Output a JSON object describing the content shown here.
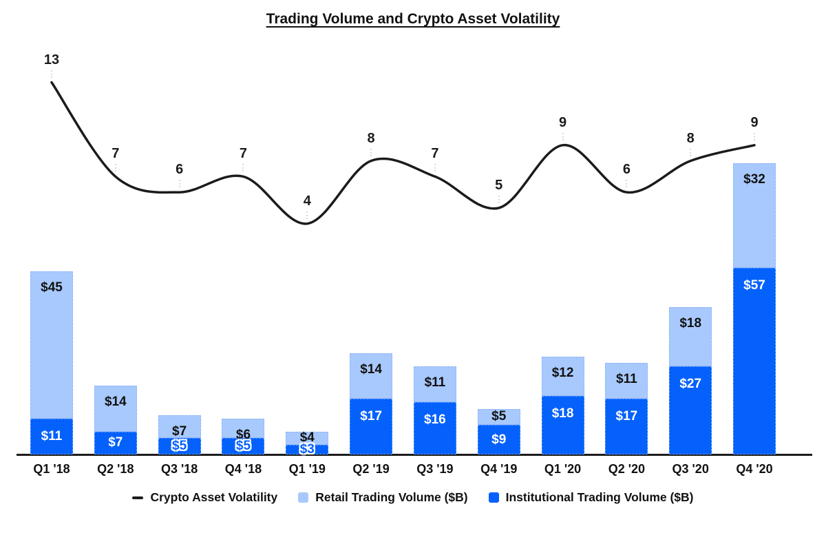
{
  "title": "Trading Volume and Crypto Asset Volatility",
  "legend": {
    "items": [
      {
        "label": "Crypto Asset Volatility",
        "swatch": "dash",
        "color": "#1b1b1b"
      },
      {
        "label": "Retail Trading Volume ($B)",
        "swatch": "square",
        "color": "#A8C9FD"
      },
      {
        "label": "Institutional Trading Volume ($B)",
        "swatch": "square",
        "color": "#0561FC"
      }
    ]
  },
  "chart_data": {
    "type": "combo",
    "title": "Trading Volume and Crypto Asset Volatility",
    "categories": [
      "Q1 '18",
      "Q2 '18",
      "Q3 '18",
      "Q4 '18",
      "Q1 '19",
      "Q2 '19",
      "Q3 '19",
      "Q4 '19",
      "Q1 '20",
      "Q2 '20",
      "Q3 '20",
      "Q4 '20"
    ],
    "series": [
      {
        "name": "Crypto Asset Volatility",
        "chart": "line",
        "color": "#1b1b1b",
        "values": [
          13,
          7,
          6,
          7,
          4,
          8,
          7,
          5,
          9,
          6,
          8,
          9
        ],
        "label_format": "plain",
        "ylim": [
          0,
          14
        ]
      },
      {
        "name": "Retail Trading Volume ($B)",
        "chart": "stacked-bar",
        "stack_position": "top",
        "color": "#A8C9FD",
        "label_color": "#111111",
        "values": [
          45,
          14,
          7,
          6,
          4,
          14,
          11,
          5,
          12,
          11,
          18,
          32
        ],
        "label_format": "$"
      },
      {
        "name": "Institutional Trading Volume ($B)",
        "chart": "stacked-bar",
        "stack_position": "bottom",
        "color": "#0561FC",
        "label_color": "#ffffff",
        "values": [
          11,
          7,
          5,
          5,
          3,
          17,
          16,
          9,
          18,
          17,
          27,
          57
        ],
        "label_format": "$"
      }
    ],
    "stack_totals": [
      56,
      21,
      12,
      11,
      7,
      31,
      27,
      14,
      30,
      28,
      45,
      89
    ],
    "axes": {
      "x_labels_visible": true,
      "y_axis_visible": false,
      "gridlines": false,
      "bar_ylim": [
        0,
        95
      ]
    },
    "legend_position": "bottom",
    "value_labels_visible": true
  }
}
